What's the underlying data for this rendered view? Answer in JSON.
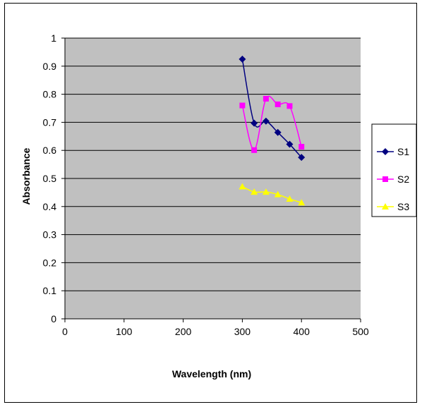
{
  "chart_data": {
    "type": "scatter",
    "title": "",
    "xlabel": "Wavelength (nm)",
    "ylabel": "Absorbance",
    "xlim": [
      0,
      500
    ],
    "ylim": [
      0,
      1
    ],
    "x_ticks": [
      "0",
      "100",
      "200",
      "300",
      "400",
      "500"
    ],
    "y_ticks": [
      "0",
      "0.1",
      "0.2",
      "0.3",
      "0.4",
      "0.5",
      "0.6",
      "0.7",
      "0.8",
      "0.9",
      "1"
    ],
    "grid": true,
    "plot_background": "#c0c0c0",
    "legend_placement": "right",
    "series": [
      {
        "name": "S1",
        "color": "#000080",
        "marker": "diamond",
        "x": [
          300,
          320,
          340,
          360,
          380,
          400
        ],
        "y": [
          0.925,
          0.697,
          0.704,
          0.664,
          0.622,
          0.575
        ]
      },
      {
        "name": "S2",
        "color": "#ff00ff",
        "marker": "square",
        "x": [
          300,
          320,
          340,
          360,
          380,
          400
        ],
        "y": [
          0.76,
          0.601,
          0.784,
          0.764,
          0.758,
          0.613
        ]
      },
      {
        "name": "S3",
        "color": "#ffff00",
        "marker": "triangle",
        "x": [
          300,
          320,
          340,
          360,
          380,
          400
        ],
        "y": [
          0.471,
          0.452,
          0.452,
          0.443,
          0.427,
          0.414
        ]
      }
    ]
  }
}
